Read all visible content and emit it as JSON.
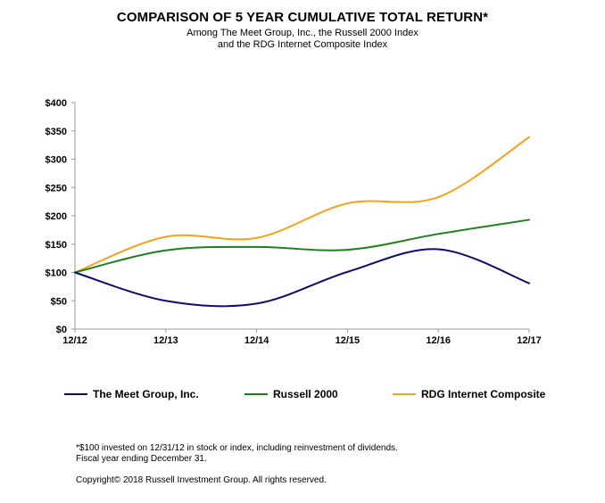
{
  "header": {
    "title": "COMPARISON OF 5 YEAR CUMULATIVE TOTAL RETURN*",
    "subtitle_line1": "Among The Meet Group, Inc., the Russell 2000 Index",
    "subtitle_line2": "and the RDG Internet Composite Index"
  },
  "chart_data": {
    "type": "line",
    "x": [
      "12/12",
      "12/13",
      "12/14",
      "12/15",
      "12/16",
      "12/17"
    ],
    "ylim": [
      0,
      400
    ],
    "yticks": [
      0,
      50,
      100,
      150,
      200,
      250,
      300,
      350,
      400
    ],
    "ytick_labels": [
      "$0",
      "$50",
      "$100",
      "$150",
      "$200",
      "$250",
      "$300",
      "$350",
      "$400"
    ],
    "grid": false,
    "legend_position": "bottom",
    "series": [
      {
        "name": "The Meet Group, Inc.",
        "color": "#0d0d6b",
        "values": [
          100,
          50,
          45,
          101,
          141,
          81
        ]
      },
      {
        "name": "Russell 2000",
        "color": "#1f7f1f",
        "values": [
          100,
          139,
          145,
          140,
          168,
          193
        ]
      },
      {
        "name": "RDG Internet Composite",
        "color": "#f5a21b",
        "values": [
          100,
          163,
          161,
          222,
          233,
          339
        ]
      }
    ]
  },
  "footnotes": {
    "line1": "*$100 invested on 12/31/12 in stock or index, including reinvestment of dividends.",
    "line2": "Fiscal year ending December 31.",
    "copyright": "Copyright© 2018 Russell Investment Group. All rights reserved."
  }
}
